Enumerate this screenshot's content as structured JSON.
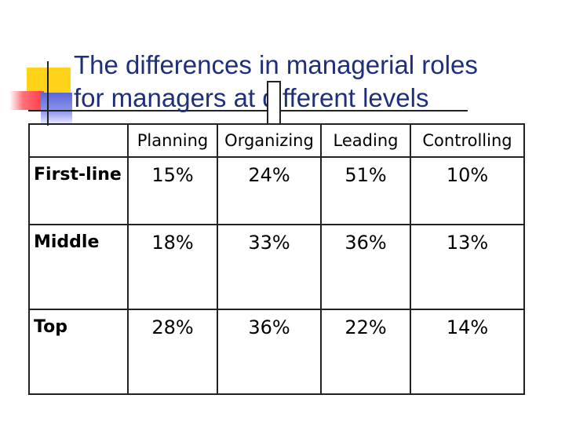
{
  "slide": {
    "title_line1": "The differences in managerial roles",
    "title_line2": "for managers at different levels"
  },
  "colors": {
    "title": "#1f2f7a",
    "accent_yellow": "#ffd31a",
    "accent_red": "#ff3c46",
    "accent_blue": "#5a66d8"
  },
  "table": {
    "headers": [
      "",
      "Planning",
      "Organizing",
      "Leading",
      "Controlling"
    ],
    "rows": [
      {
        "label": "First-line",
        "values": [
          "15%",
          "24%",
          "51%",
          "10%"
        ]
      },
      {
        "label": "Middle",
        "values": [
          "18%",
          "33%",
          "36%",
          "13%"
        ]
      },
      {
        "label": "Top",
        "values": [
          "28%",
          "36%",
          "22%",
          "14%"
        ]
      }
    ]
  }
}
